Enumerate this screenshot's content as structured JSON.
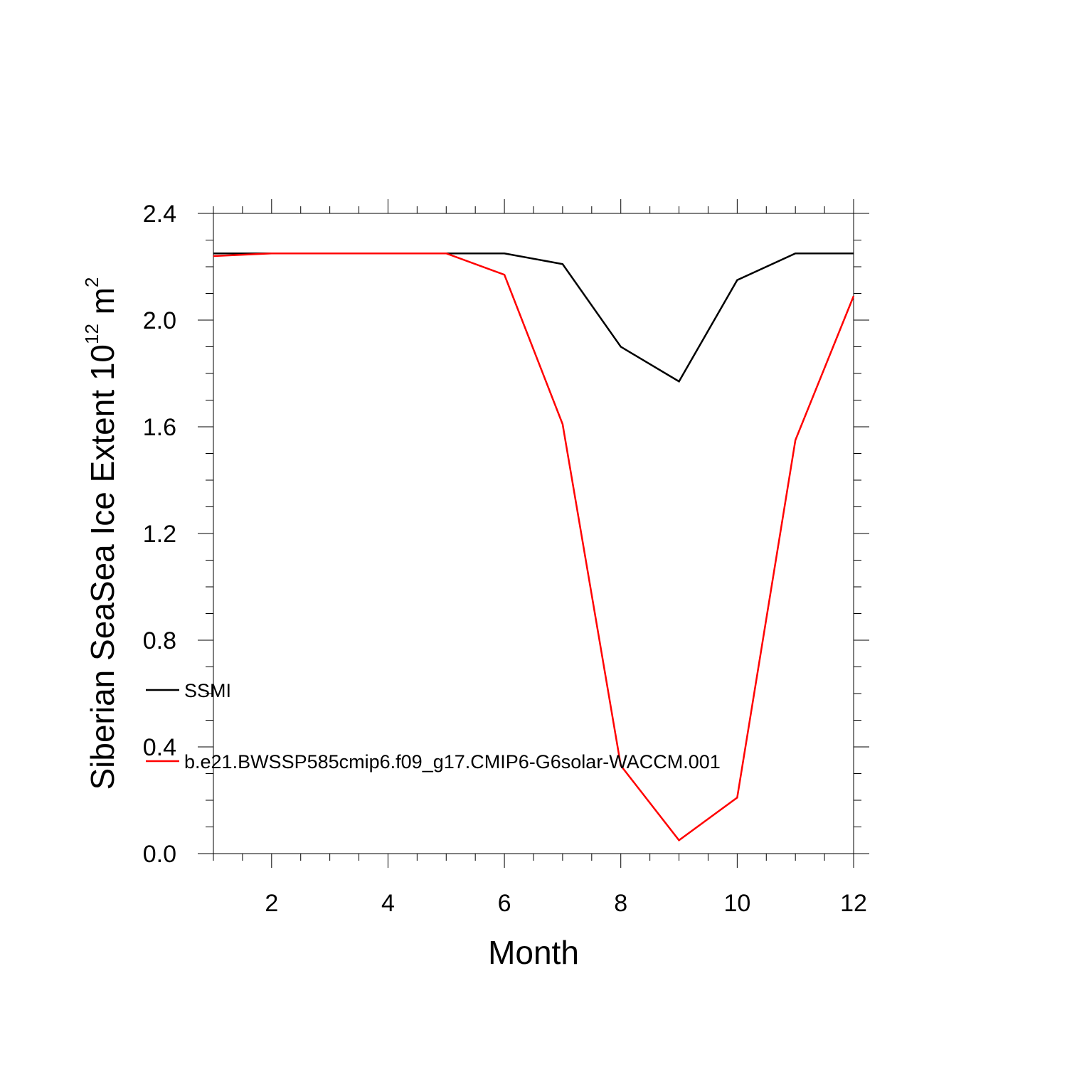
{
  "chart_data": {
    "type": "line",
    "title": "",
    "xlabel": "Month",
    "ylabel_main": "Siberian SeaSea Ice Extent 10",
    "ylabel_sup": "12",
    "ylabel_unit": " m",
    "ylabel_unit_sup": "2",
    "xlim": [
      1,
      12
    ],
    "ylim": [
      0,
      2.4
    ],
    "x_ticks": [
      2,
      4,
      6,
      8,
      10,
      12
    ],
    "x_tick_labels": [
      "2",
      "4",
      "6",
      "8",
      "10",
      "12"
    ],
    "y_ticks": [
      0,
      0.4,
      0.8,
      1.2,
      1.6,
      2.0,
      2.4
    ],
    "y_tick_labels": [
      "0.0",
      "0.4",
      "0.8",
      "1.2",
      "1.6",
      "2.0",
      "2.4"
    ],
    "x": [
      1,
      2,
      3,
      4,
      5,
      6,
      7,
      8,
      9,
      10,
      11,
      12
    ],
    "series": [
      {
        "name": "SSMI",
        "color": "#000000",
        "values": [
          2.25,
          2.25,
          2.25,
          2.25,
          2.25,
          2.25,
          2.21,
          1.9,
          1.77,
          2.15,
          2.25,
          2.25
        ]
      },
      {
        "name": "b.e21.BWSSP585cmip6.f09_g17.CMIP6-G6solar-WACCM.001",
        "color": "#ff0000",
        "values": [
          2.24,
          2.25,
          2.25,
          2.25,
          2.25,
          2.17,
          1.61,
          0.33,
          0.05,
          0.21,
          1.55,
          2.09
        ]
      }
    ],
    "legend": "inside-lower-left",
    "grid": false
  }
}
